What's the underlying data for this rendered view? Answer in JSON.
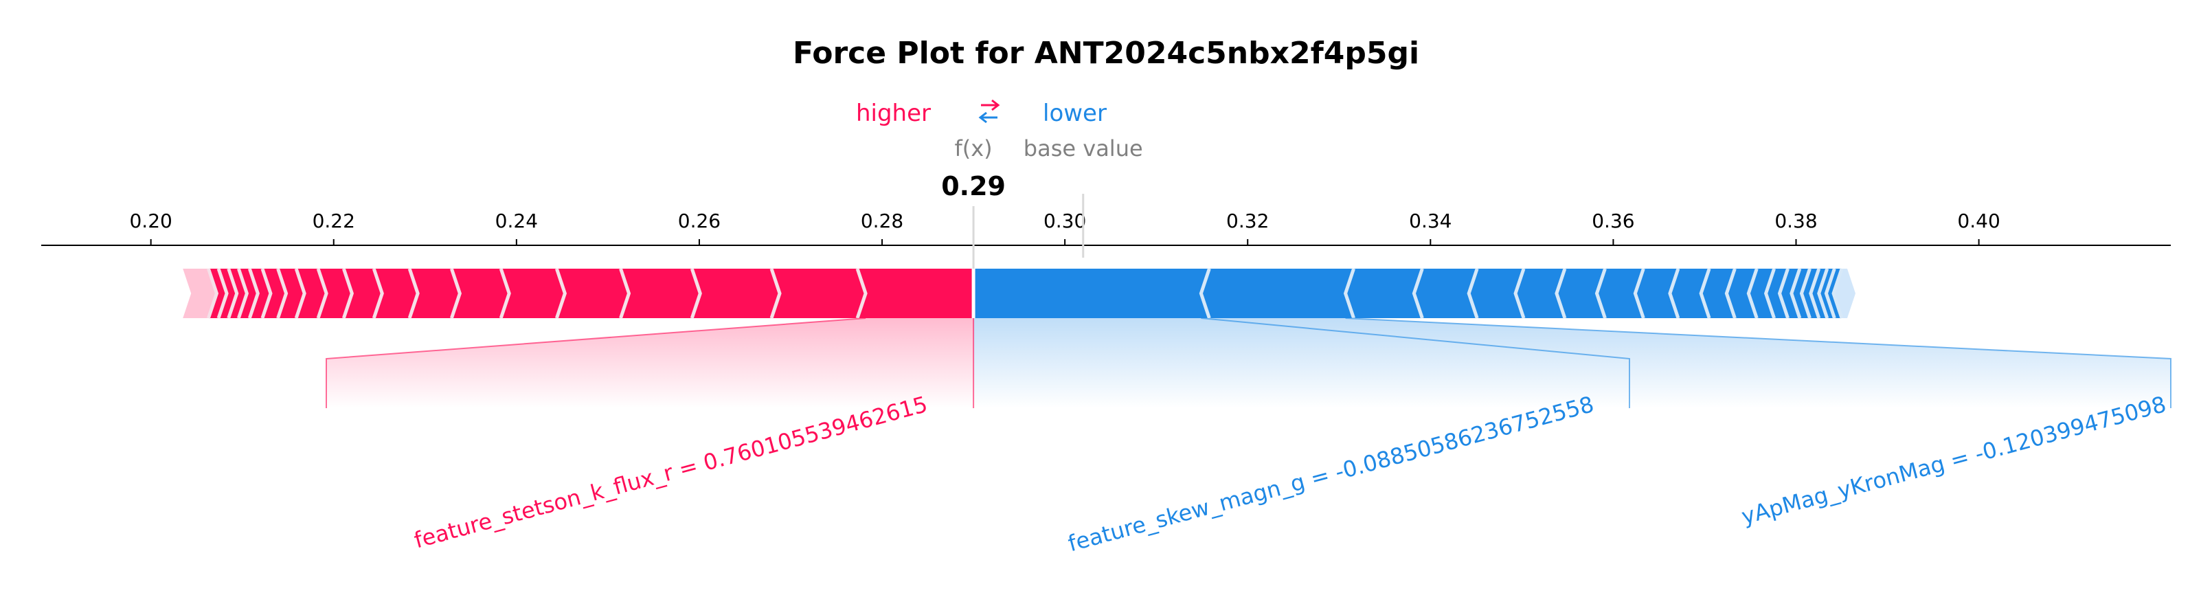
{
  "chart_data": {
    "type": "force",
    "title": "Force Plot for ANT2024c5nbx2f4p5gi",
    "legend": {
      "higher": "higher",
      "lower": "lower",
      "arrow": "⇄"
    },
    "fx_label": "f(x)",
    "base_value_label": "base value",
    "fx_value": 0.29,
    "fx_text": "0.29",
    "base_value": 0.302,
    "xlim": [
      0.188,
      0.421
    ],
    "ticks": [
      0.2,
      0.22,
      0.24,
      0.26,
      0.28,
      0.3,
      0.32,
      0.34,
      0.36,
      0.38,
      0.4
    ],
    "tick_labels": [
      "0.20",
      "0.22",
      "0.24",
      "0.26",
      "0.28",
      "0.30",
      "0.32",
      "0.34",
      "0.36",
      "0.38",
      "0.40"
    ],
    "positive_extent": [
      0.2035,
      0.29
    ],
    "negative_extent": [
      0.29,
      0.3865
    ],
    "positive_edges": [
      0.2035,
      0.2072,
      0.2083,
      0.2094,
      0.2105,
      0.2117,
      0.2131,
      0.2148,
      0.2168,
      0.2192,
      0.222,
      0.2253,
      0.2292,
      0.2338,
      0.2392,
      0.2453,
      0.2523,
      0.2601,
      0.2688,
      0.2782
    ],
    "negative_edges": [
      0.3149,
      0.3307,
      0.3382,
      0.3442,
      0.3493,
      0.3538,
      0.3582,
      0.3624,
      0.3662,
      0.3696,
      0.3724,
      0.3748,
      0.3767,
      0.3782,
      0.3795,
      0.3806,
      0.3816,
      0.3825,
      0.3833,
      0.3841,
      0.3865
    ],
    "features": [
      {
        "label": "feature_stetson_k_flux_r = 0.760105539462615",
        "direction": "positive",
        "from": 0.2782,
        "to": 0.29
      },
      {
        "label": "feature_skew_magn_g = -0.0885058623675255​8",
        "direction": "negative",
        "from": 0.29,
        "to": 0.3149
      },
      {
        "label": "yApMag_yKronMag = -0.120399475098",
        "direction": "negative",
        "from": 0.3149,
        "to": 0.3307
      }
    ],
    "colors": {
      "positive": "#ff0d57",
      "positive_light": "#ffc3d5",
      "negative": "#1e88e5",
      "negative_light": "#d1e6fa",
      "separator": "#f5e0e8",
      "axis": "#000000",
      "muted": "#808080"
    }
  }
}
